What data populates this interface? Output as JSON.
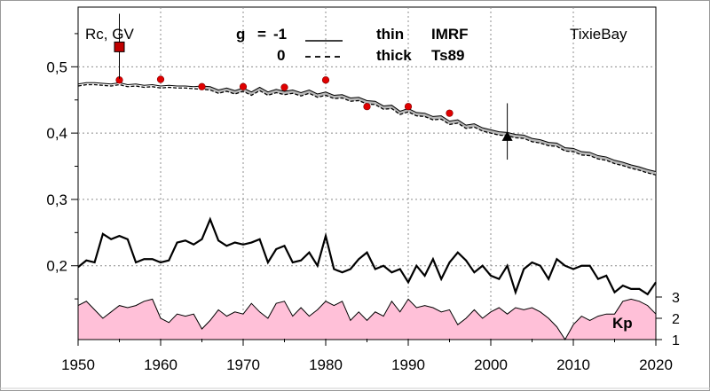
{
  "chart_data": {
    "type": "line",
    "station": "TixieBay",
    "ylabel": "Rc, GV",
    "x": [
      1950,
      1951,
      1952,
      1953,
      1954,
      1955,
      1956,
      1957,
      1958,
      1959,
      1960,
      1961,
      1962,
      1963,
      1964,
      1965,
      1966,
      1967,
      1968,
      1969,
      1970,
      1971,
      1972,
      1973,
      1974,
      1975,
      1976,
      1977,
      1978,
      1979,
      1980,
      1981,
      1982,
      1983,
      1984,
      1985,
      1986,
      1987,
      1988,
      1989,
      1990,
      1991,
      1992,
      1993,
      1994,
      1995,
      1996,
      1997,
      1998,
      1999,
      2000,
      2001,
      2002,
      2003,
      2004,
      2005,
      2006,
      2007,
      2008,
      2009,
      2010,
      2011,
      2012,
      2013,
      2014,
      2015,
      2016,
      2017,
      2018,
      2019,
      2020
    ],
    "xlim": [
      1950,
      2020
    ],
    "ylim": [
      0.09,
      0.59
    ],
    "xticks": [
      "1950",
      "1960",
      "1970",
      "1980",
      "1990",
      "2000",
      "2010",
      "2020"
    ],
    "yticks": [
      "0,2",
      "0,3",
      "0,4",
      "0,5"
    ],
    "grid": true,
    "legend": {
      "g_header": "g",
      "eq": "=",
      "row1_g": "-1",
      "row1_width": "thin",
      "row1_model": "IMRF",
      "row2_g": "0",
      "row2_width": "thick",
      "row2_model": "Ts89"
    },
    "series": [
      {
        "values": [
          0.474,
          0.476,
          0.476,
          0.475,
          0.474,
          0.476,
          0.473,
          0.474,
          0.472,
          0.473,
          0.471,
          0.472,
          0.471,
          0.471,
          0.47,
          0.471,
          0.47,
          0.465,
          0.468,
          0.464,
          0.468,
          0.462,
          0.469,
          0.462,
          0.466,
          0.463,
          0.465,
          0.461,
          0.465,
          0.459,
          0.462,
          0.457,
          0.458,
          0.453,
          0.454,
          0.449,
          0.448,
          0.441,
          0.442,
          0.433,
          0.437,
          0.431,
          0.43,
          0.425,
          0.426,
          0.418,
          0.42,
          0.412,
          0.414,
          0.408,
          0.405,
          0.402,
          0.401,
          0.398,
          0.397,
          0.392,
          0.39,
          0.386,
          0.385,
          0.378,
          0.377,
          0.372,
          0.371,
          0.366,
          0.364,
          0.359,
          0.356,
          0.352,
          0.349,
          0.345,
          0.342
        ]
      },
      {
        "values": [
          0.471,
          0.473,
          0.473,
          0.472,
          0.471,
          0.473,
          0.47,
          0.471,
          0.469,
          0.47,
          0.468,
          0.469,
          0.468,
          0.468,
          0.467,
          0.466,
          0.465,
          0.46,
          0.463,
          0.459,
          0.463,
          0.457,
          0.464,
          0.457,
          0.461,
          0.458,
          0.46,
          0.456,
          0.46,
          0.454,
          0.457,
          0.452,
          0.453,
          0.448,
          0.449,
          0.444,
          0.443,
          0.436,
          0.437,
          0.428,
          0.432,
          0.426,
          0.425,
          0.42,
          0.421,
          0.413,
          0.415,
          0.407,
          0.409,
          0.403,
          0.4,
          0.397,
          0.396,
          0.393,
          0.392,
          0.387,
          0.385,
          0.381,
          0.38,
          0.373,
          0.372,
          0.367,
          0.366,
          0.361,
          0.359,
          0.354,
          0.351,
          0.347,
          0.344,
          0.34,
          0.337
        ]
      },
      {
        "values": [
          0.198,
          0.208,
          0.205,
          0.248,
          0.24,
          0.245,
          0.24,
          0.205,
          0.21,
          0.21,
          0.205,
          0.208,
          0.235,
          0.238,
          0.232,
          0.24,
          0.27,
          0.238,
          0.23,
          0.235,
          0.232,
          0.235,
          0.24,
          0.205,
          0.225,
          0.23,
          0.205,
          0.208,
          0.22,
          0.2,
          0.245,
          0.195,
          0.19,
          0.195,
          0.21,
          0.22,
          0.195,
          0.2,
          0.19,
          0.195,
          0.175,
          0.2,
          0.185,
          0.21,
          0.18,
          0.205,
          0.22,
          0.208,
          0.19,
          0.2,
          0.185,
          0.18,
          0.2,
          0.16,
          0.195,
          0.205,
          0.2,
          0.18,
          0.21,
          0.2,
          0.195,
          0.2,
          0.2,
          0.18,
          0.185,
          0.16,
          0.17,
          0.165,
          0.165,
          0.157,
          0.175
        ]
      }
    ],
    "markers_red_circles": [
      {
        "x": 1955,
        "y": 0.48
      },
      {
        "x": 1960,
        "y": 0.481
      },
      {
        "x": 1965,
        "y": 0.47
      },
      {
        "x": 1970,
        "y": 0.47
      },
      {
        "x": 1975,
        "y": 0.469
      },
      {
        "x": 1980,
        "y": 0.48
      },
      {
        "x": 1985,
        "y": 0.44
      },
      {
        "x": 1990,
        "y": 0.44
      },
      {
        "x": 1995,
        "y": 0.43
      }
    ],
    "marker_square": {
      "x": 1955,
      "y": 0.53,
      "err_high": 0.58,
      "err_low": 0.482
    },
    "marker_triangle": {
      "x": 2002,
      "y": 0.395,
      "err_high": 0.445,
      "err_low": 0.36
    },
    "kp": {
      "label": "Kp",
      "ylim": [
        1,
        3
      ],
      "yticks": [
        "1",
        "2",
        "3"
      ],
      "values": [
        2.6,
        2.8,
        2.4,
        2.0,
        2.3,
        2.6,
        2.5,
        2.6,
        2.8,
        2.9,
        2.0,
        1.8,
        2.2,
        2.1,
        2.2,
        1.5,
        1.9,
        2.4,
        2.1,
        2.3,
        2.2,
        2.7,
        2.3,
        2.0,
        2.7,
        2.8,
        2.1,
        2.5,
        2.1,
        2.4,
        2.8,
        2.6,
        2.8,
        1.9,
        2.3,
        1.9,
        2.3,
        2.1,
        2.8,
        2.3,
        2.9,
        2.5,
        2.6,
        2.5,
        2.3,
        2.4,
        1.7,
        2.0,
        2.4,
        2.0,
        2.3,
        2.5,
        2.2,
        2.5,
        2.4,
        2.5,
        2.3,
        2.0,
        1.6,
        1.0,
        1.7,
        2.1,
        1.9,
        2.1,
        2.2,
        2.2,
        2.8,
        2.9,
        2.8,
        2.6,
        2.2
      ]
    }
  }
}
